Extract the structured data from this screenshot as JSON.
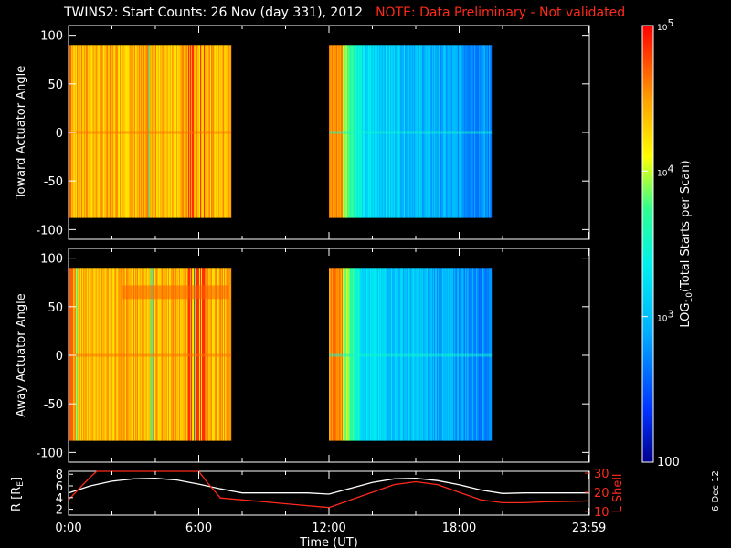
{
  "title": {
    "main": "TWINS2: Start Counts: 26 Nov (day 331), 2012",
    "note": "NOTE: Data Preliminary - Not validated"
  },
  "stamp": "6 Dec 12",
  "colors": {
    "background": "#000000",
    "note": "#ff2a1a",
    "r_line": "#ffffff",
    "l_line": "#ff2a1a"
  },
  "chart_data": [
    {
      "type": "heatmap",
      "panel": "toward",
      "ylabel": "Toward Actuator Angle",
      "ylim": [
        -110,
        110
      ],
      "yticks": [
        100,
        50,
        0,
        -50,
        -100
      ],
      "xlim_hours": [
        0,
        24
      ],
      "angle_coverage": [
        -88,
        90
      ],
      "segments": [
        {
          "start": "00:00",
          "end": "07:30",
          "level": "high (1e4 - 1e5)"
        },
        {
          "start": "12:00",
          "end": "19:30",
          "level": "falls from ~5e4 to ~1e3"
        }
      ],
      "gap": [
        "07:30",
        "12:00"
      ]
    },
    {
      "type": "heatmap",
      "panel": "away",
      "ylabel": "Away Actuator Angle",
      "ylim": [
        -110,
        110
      ],
      "yticks": [
        100,
        50,
        0,
        -50,
        -100
      ],
      "xlim_hours": [
        0,
        24
      ],
      "angle_coverage": [
        -88,
        90
      ],
      "segments": [
        {
          "start": "00:00",
          "end": "07:30",
          "level": "high (1e4 - 1e5)"
        },
        {
          "start": "12:00",
          "end": "19:30",
          "level": "falls from ~5e4 to ~1e3"
        }
      ],
      "gap": [
        "07:30",
        "12:00"
      ]
    },
    {
      "type": "line",
      "panel": "orbit",
      "xlabel": "Time (UT)",
      "xticks": [
        "0:00",
        "6:00",
        "12:00",
        "18:00",
        "23:59"
      ],
      "ylabel_left": "R [R",
      "ylabel_left_sub": "E",
      "ylabel_left_end": "]",
      "ylabel_right": "L Shell",
      "yticks_left": [
        2,
        4,
        6,
        8
      ],
      "yticks_right": [
        10,
        20,
        30
      ],
      "ylim_left": [
        1,
        8.5
      ],
      "ylim_right": [
        8,
        31
      ],
      "series": [
        {
          "axis": "left",
          "x": [
            0,
            1,
            2,
            3,
            4,
            5,
            6,
            7,
            8,
            9,
            10,
            11,
            12,
            13,
            14,
            15,
            16,
            17,
            18,
            19,
            20,
            21,
            22,
            23,
            24
          ],
          "y": [
            4.8,
            6.0,
            6.8,
            7.2,
            7.3,
            7.0,
            6.3,
            5.5,
            4.8,
            4.8,
            4.8,
            4.8,
            4.6,
            5.6,
            6.6,
            7.2,
            7.3,
            6.9,
            6.2,
            5.3,
            4.7,
            4.8,
            4.8,
            4.8,
            4.8
          ]
        },
        {
          "axis": "right",
          "x": [
            0,
            0.5,
            1,
            1.3,
            6,
            6.4,
            7,
            8,
            9,
            10,
            11,
            12,
            13,
            14,
            15,
            16,
            17,
            18,
            19,
            20,
            21,
            22,
            23,
            24
          ],
          "y": [
            16,
            22,
            28,
            31,
            31,
            25,
            17,
            16,
            15,
            14,
            13,
            12,
            16,
            20,
            24,
            25.5,
            24,
            20,
            16,
            14.5,
            14.5,
            15,
            15.2,
            15.5
          ]
        }
      ]
    },
    {
      "type": "colorbar",
      "label": "LOG",
      "label_sub": "10",
      "label_end": "(Total Starts per Scan)",
      "range": [
        100,
        100000
      ],
      "ticks": [
        {
          "value": 100,
          "base": "100",
          "exp": ""
        },
        {
          "value": 1000,
          "base": "10",
          "exp": "3"
        },
        {
          "value": 10000,
          "base": "10",
          "exp": "4"
        },
        {
          "value": 100000,
          "base": "10",
          "exp": "5"
        }
      ]
    }
  ]
}
